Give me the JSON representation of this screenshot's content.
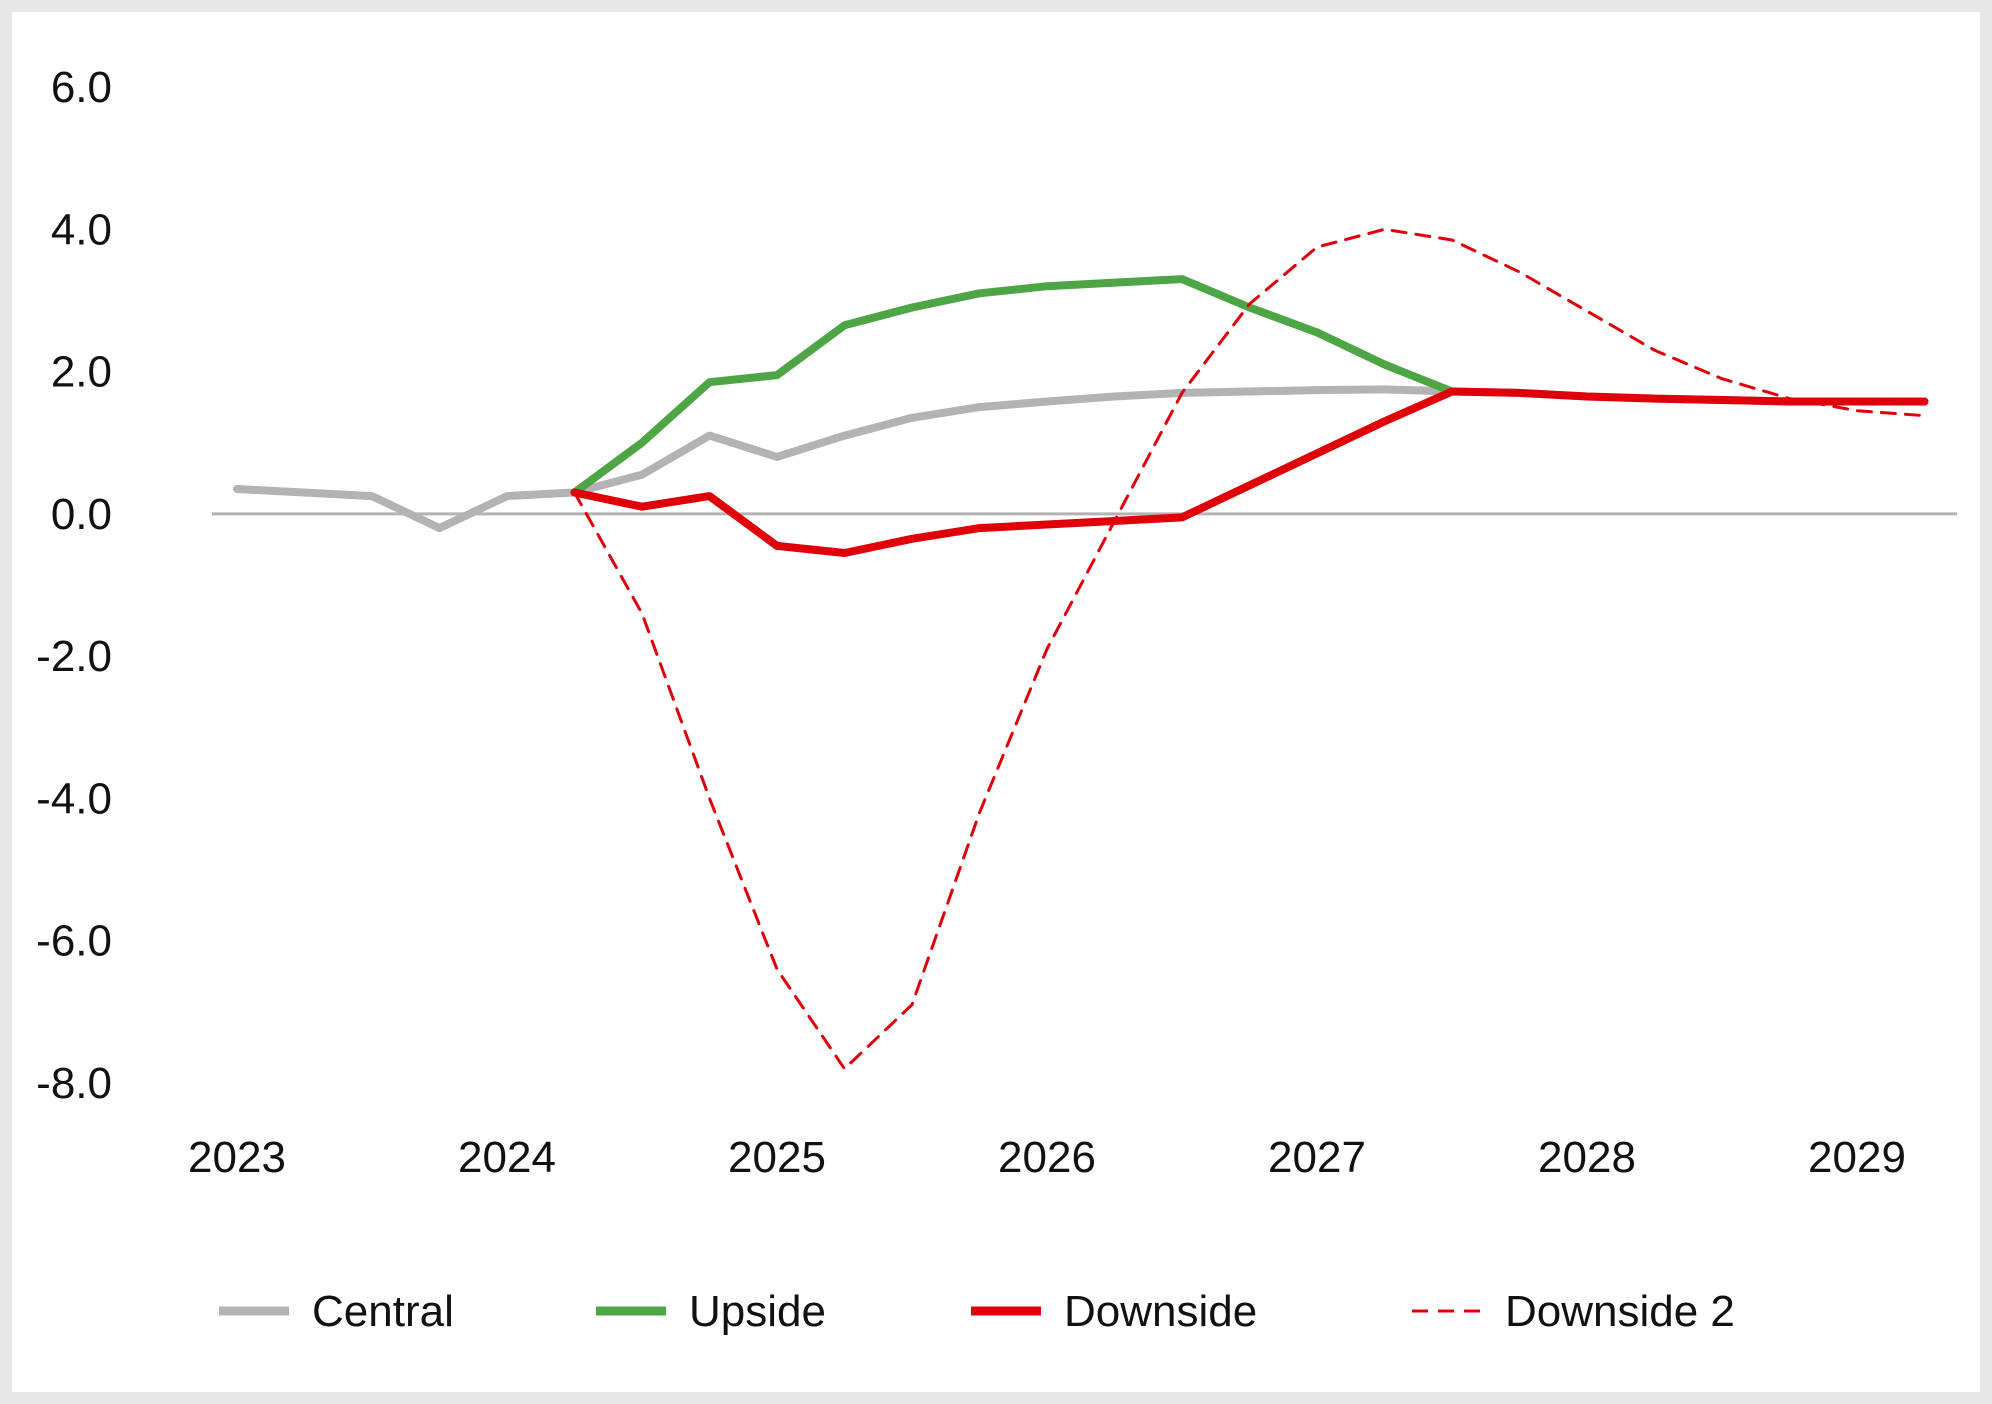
{
  "chart_data": {
    "type": "line",
    "title": "",
    "xlabel": "",
    "ylabel": "",
    "ylim": [
      -8,
      6
    ],
    "yticks": [
      "6.0",
      "4.0",
      "2.0",
      "0.0",
      "-2.0",
      "-4.0",
      "-6.0",
      "-8.0"
    ],
    "ytick_values": [
      6,
      4,
      2,
      0,
      -2,
      -4,
      -6,
      -8
    ],
    "xlim": [
      2022.9,
      2029.25
    ],
    "xticks": [
      "2023",
      "2024",
      "2025",
      "2026",
      "2027",
      "2028",
      "2029"
    ],
    "xtick_values": [
      2023,
      2024,
      2025,
      2026,
      2027,
      2028,
      2029
    ],
    "grid": false,
    "zero_line": true,
    "legend_position": "bottom",
    "series": [
      {
        "name": "Central",
        "color": "#b3b3b3",
        "style": "solid",
        "x": [
          2023.0,
          2023.5,
          2023.75,
          2024.0,
          2024.25,
          2024.5,
          2024.75,
          2025.0,
          2025.25,
          2025.5,
          2025.75,
          2026.0,
          2026.25,
          2026.5,
          2026.75,
          2027.0,
          2027.25,
          2027.5,
          2027.75,
          2028.0,
          2028.25,
          2028.5,
          2028.75,
          2029.0,
          2029.25
        ],
        "y": [
          0.35,
          0.25,
          -0.2,
          0.25,
          0.3,
          0.55,
          1.1,
          0.8,
          1.1,
          1.35,
          1.5,
          1.58,
          1.65,
          1.7,
          1.72,
          1.74,
          1.75,
          1.72,
          1.7,
          1.65,
          1.62,
          1.6,
          1.58,
          1.58,
          1.58
        ]
      },
      {
        "name": "Upside",
        "color": "#4ea546",
        "style": "solid",
        "x": [
          2024.25,
          2024.5,
          2024.75,
          2025.0,
          2025.25,
          2025.5,
          2025.75,
          2026.0,
          2026.25,
          2026.5,
          2026.75,
          2027.0,
          2027.25,
          2027.5
        ],
        "y": [
          0.3,
          1.0,
          1.85,
          1.95,
          2.65,
          2.9,
          3.1,
          3.2,
          3.25,
          3.3,
          2.9,
          2.55,
          2.1,
          1.72
        ]
      },
      {
        "name": "Downside",
        "color": "#e0000a",
        "style": "solid",
        "x": [
          2024.25,
          2024.5,
          2024.75,
          2025.0,
          2025.25,
          2025.5,
          2025.75,
          2026.0,
          2026.25,
          2026.5,
          2026.75,
          2027.0,
          2027.25,
          2027.5,
          2027.75,
          2028.0,
          2028.25,
          2028.5,
          2028.75,
          2029.0,
          2029.25
        ],
        "y": [
          0.3,
          0.1,
          0.25,
          -0.45,
          -0.55,
          -0.35,
          -0.2,
          -0.15,
          -0.1,
          -0.05,
          0.4,
          0.85,
          1.3,
          1.72,
          1.7,
          1.65,
          1.62,
          1.6,
          1.58,
          1.58,
          1.58
        ]
      },
      {
        "name": "Downside 2",
        "color": "#e0000a",
        "style": "dashed",
        "x": [
          2024.25,
          2024.5,
          2024.75,
          2025.0,
          2025.25,
          2025.5,
          2025.75,
          2026.0,
          2026.25,
          2026.5,
          2026.75,
          2027.0,
          2027.25,
          2027.5,
          2027.75,
          2028.0,
          2028.25,
          2028.5,
          2028.75,
          2029.0,
          2029.25
        ],
        "y": [
          0.3,
          -1.4,
          -4.0,
          -6.4,
          -7.8,
          -6.9,
          -4.2,
          -1.9,
          -0.1,
          1.7,
          2.95,
          3.75,
          4.0,
          3.85,
          3.4,
          2.85,
          2.3,
          1.9,
          1.62,
          1.45,
          1.38
        ]
      }
    ]
  }
}
